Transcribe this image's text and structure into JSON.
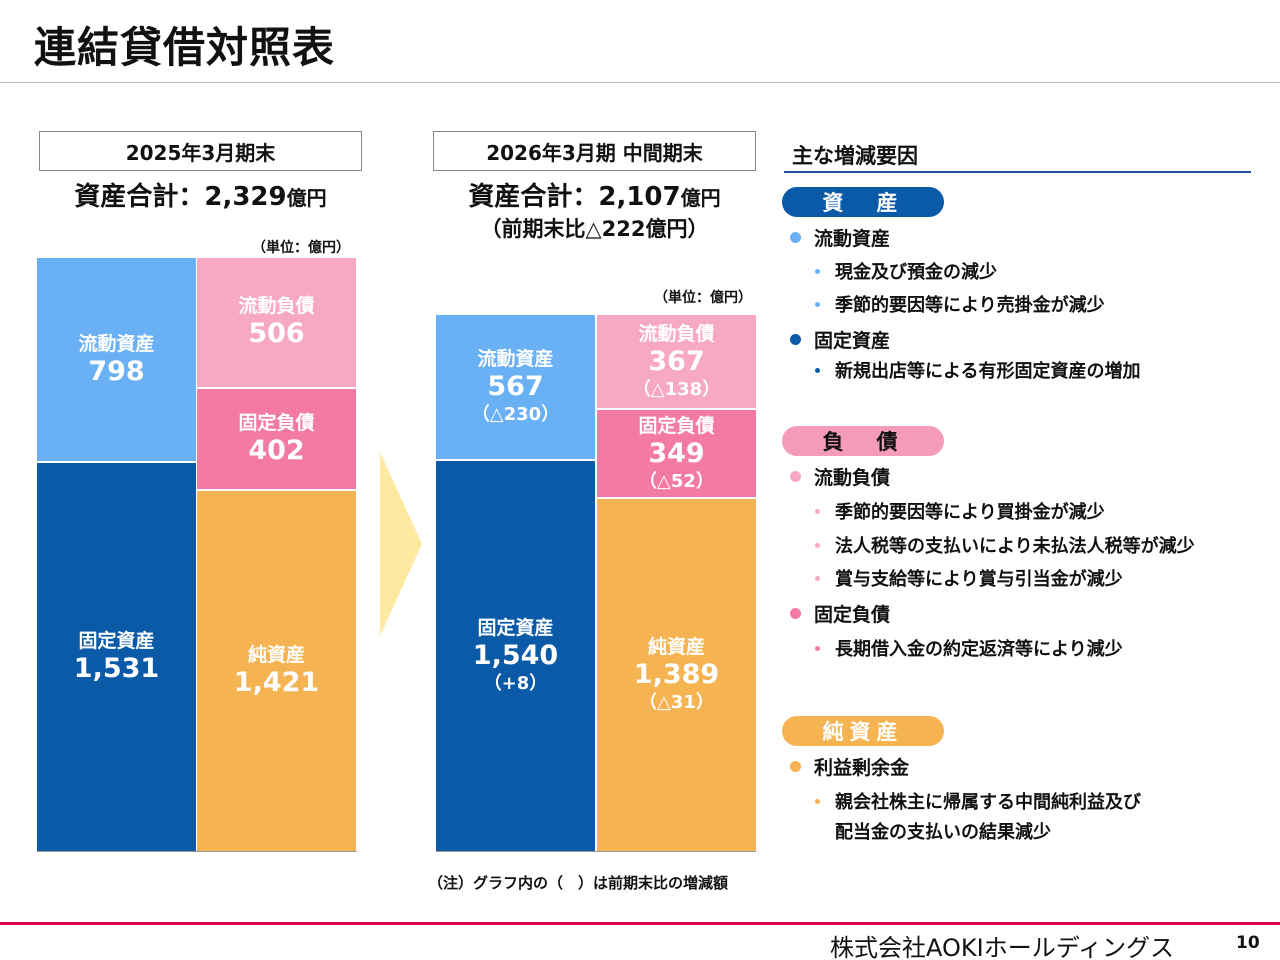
{
  "title": "連結貸借対照表",
  "colors": {
    "current_assets": "#6ab0f5",
    "fixed_assets": "#0a5aa8",
    "current_liabilities": "#f7a8c5",
    "fixed_liabilities": "#f27aa5",
    "net_assets": "#f6b352",
    "arrow": "#fde9a0",
    "footer_rule": "#e10050"
  },
  "left_panel": {
    "period": "2025年3月期末",
    "total_label": "資産合計：",
    "total_value": "2,329",
    "total_unit": "億円",
    "unit_note": "（単位：億円）"
  },
  "right_panel": {
    "period": "2026年3月期 中間期末",
    "total_label": "資産合計：",
    "total_value": "2,107",
    "total_unit": "億円",
    "total_diff": "（前期末比△222億円）",
    "unit_note": "（単位：億円）"
  },
  "chart_data": {
    "type": "bar",
    "unit": "億円",
    "scale_max": 2329,
    "periods": [
      "2025年3月期末",
      "2026年3月期 中間期末"
    ],
    "series": [
      {
        "name": "流動資産",
        "side": "assets",
        "values": [
          798,
          567
        ],
        "value_labels": [
          "798",
          "567"
        ],
        "change_labels": [
          "",
          "（△230）"
        ]
      },
      {
        "name": "固定資産",
        "side": "assets",
        "values": [
          1531,
          1540
        ],
        "value_labels": [
          "1,531",
          "1,540"
        ],
        "change_labels": [
          "",
          "（+8）"
        ]
      },
      {
        "name": "流動負債",
        "side": "liabilities",
        "values": [
          506,
          367
        ],
        "value_labels": [
          "506",
          "367"
        ],
        "change_labels": [
          "",
          "（△138）"
        ]
      },
      {
        "name": "固定負債",
        "side": "liabilities",
        "values": [
          402,
          349
        ],
        "value_labels": [
          "402",
          "349"
        ],
        "change_labels": [
          "",
          "（△52）"
        ]
      },
      {
        "name": "純資産",
        "side": "liabilities",
        "values": [
          1421,
          1389
        ],
        "value_labels": [
          "1,421",
          "1,389"
        ],
        "change_labels": [
          "",
          "（△31）"
        ]
      }
    ]
  },
  "note": "（注）グラフ内の（　）は前期末比の増減額",
  "factors": {
    "heading": "主な増減要因",
    "assets": {
      "pill": "資　産",
      "items": [
        {
          "label": "流動資産",
          "subs": [
            "現金及び預金の減少",
            "季節的要因等により売掛金が減少"
          ]
        },
        {
          "label": "固定資産",
          "subs": [
            "新規出店等による有形固定資産の増加"
          ]
        }
      ]
    },
    "liabilities": {
      "pill": "負　債",
      "items": [
        {
          "label": "流動負債",
          "subs": [
            "季節的要因等により買掛金が減少",
            "法人税等の支払いにより未払法人税等が減少",
            "賞与支給等により賞与引当金が減少"
          ]
        },
        {
          "label": "固定負債",
          "subs": [
            "長期借入金の約定返済等により減少"
          ]
        }
      ]
    },
    "equity": {
      "pill": "純資産",
      "items": [
        {
          "label": "利益剰余金",
          "subs": [
            "親会社株主に帰属する中間純利益及び",
            "配当金の支払いの結果減少"
          ]
        }
      ]
    }
  },
  "company": "株式会社AOKIホールディングス",
  "page_number": "10"
}
